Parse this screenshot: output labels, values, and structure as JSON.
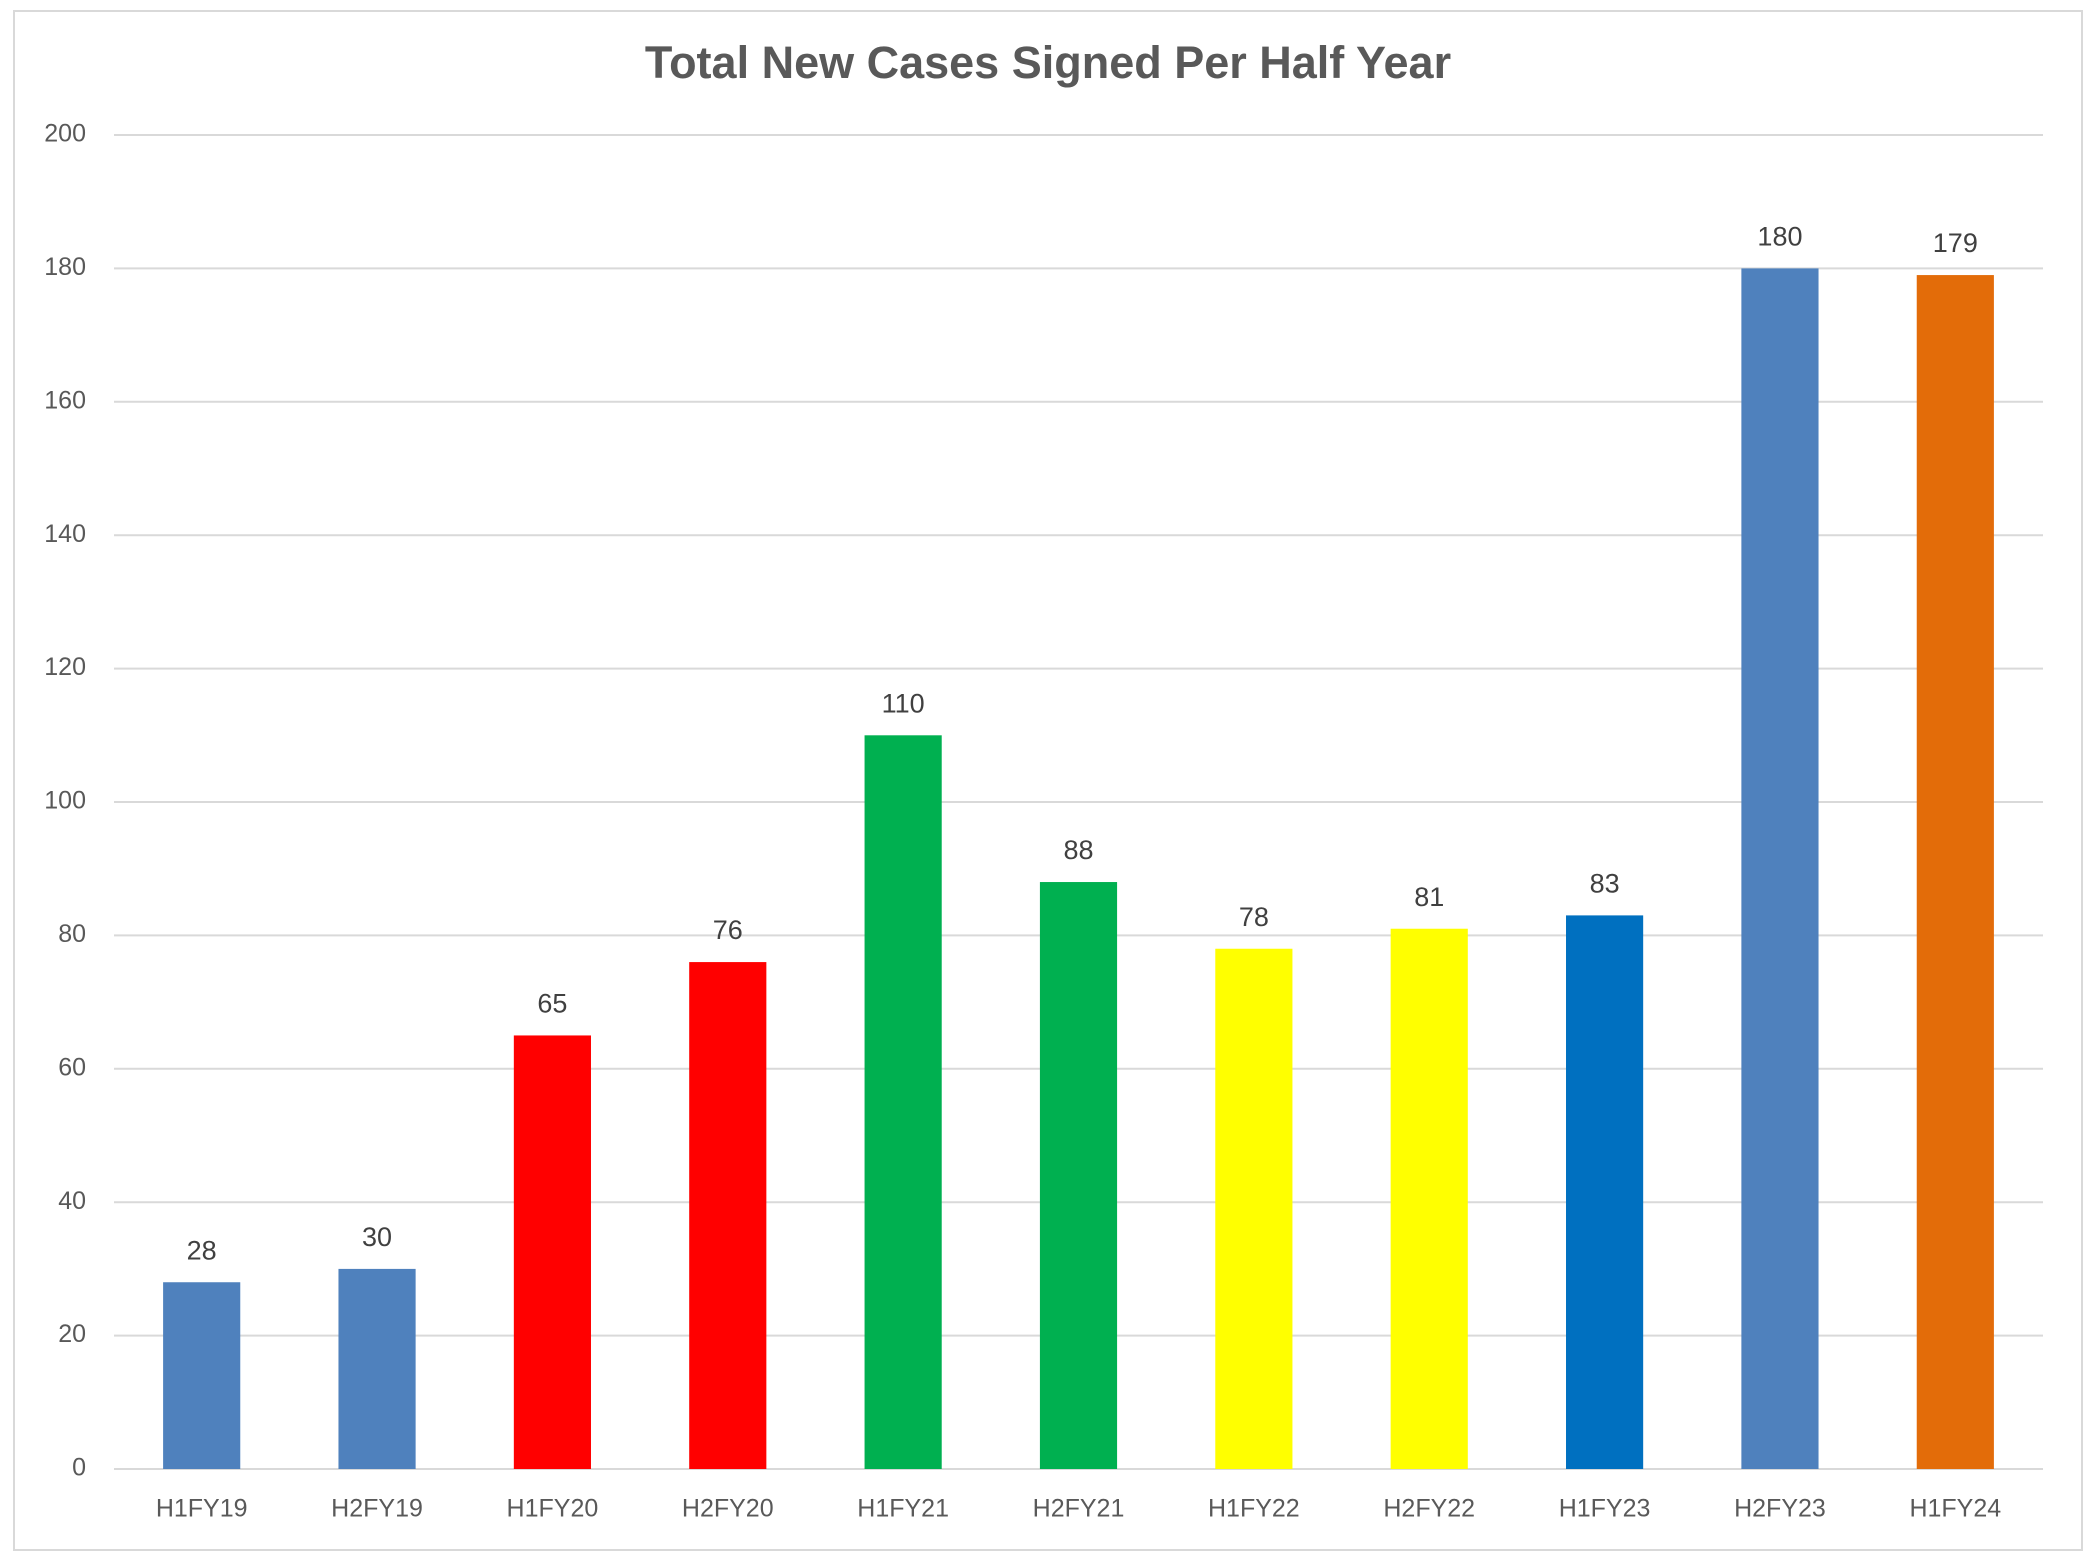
{
  "chart_data": {
    "type": "bar",
    "title": "Total New Cases Signed Per Half Year",
    "categories": [
      "H1FY19",
      "H2FY19",
      "H1FY20",
      "H2FY20",
      "H1FY21",
      "H2FY21",
      "H1FY22",
      "H2FY22",
      "H1FY23",
      "H2FY23",
      "H1FY24"
    ],
    "values": [
      28,
      30,
      65,
      76,
      110,
      88,
      78,
      81,
      83,
      180,
      179
    ],
    "colors": [
      "#4f81bd",
      "#4f81bd",
      "#ff0000",
      "#ff0000",
      "#00b050",
      "#00b050",
      "#ffff00",
      "#ffff00",
      "#0070c0",
      "#4f81bd",
      "#e36c09"
    ],
    "ylim": [
      0,
      200
    ],
    "yticks": [
      0,
      20,
      40,
      60,
      80,
      100,
      120,
      140,
      160,
      180,
      200
    ],
    "grid": true
  }
}
